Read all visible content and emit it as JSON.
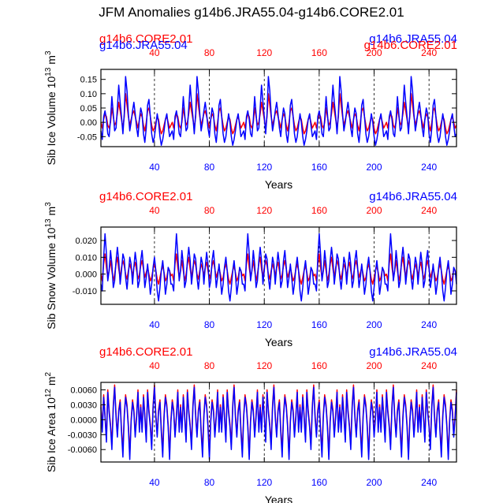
{
  "title": "JFM Anomalies g14b6.JRA55.04-g14b6.CORE2.01",
  "colors": {
    "core": "#ff0000",
    "jra": "#0000ff",
    "axis": "#000000"
  },
  "chart_data": [
    {
      "type": "line",
      "id": "ice-volume",
      "ylabel": "Sib Ice Volume",
      "ylabel_unit": "10",
      "ylabel_unit_exp": "13",
      "ylabel_unit_tail": " m",
      "ylabel_unit_tail_exp": "3",
      "xlabel": "Years",
      "xlim": [
        1,
        260
      ],
      "ylim": [
        -0.085,
        0.185
      ],
      "yticks": [
        -0.05,
        0.0,
        0.05,
        0.1,
        0.15
      ],
      "ytick_labels": [
        "-0.05",
        "0.00",
        "0.05",
        "0.10",
        "0.15"
      ],
      "bottom_xticks": [
        40,
        80,
        120,
        160,
        200,
        240
      ],
      "bottom_xtick_labels": [
        "40",
        "80",
        "120",
        "160",
        "200",
        "240"
      ],
      "top_xticks": [
        40,
        80,
        120,
        160,
        200,
        240
      ],
      "top_xtick_labels": [
        "40",
        "80",
        "120",
        "160",
        "200",
        "240"
      ],
      "vlines": [
        40,
        80,
        120,
        160,
        200,
        240
      ],
      "legend_left": [
        "g14b6.CORE2.01",
        "g14b6.JRA55.04"
      ],
      "legend_right": [
        "g14b6.JRA55.04",
        "g14b6.CORE2.01"
      ],
      "cycle_length": 52,
      "series": [
        {
          "name": "g14b6.CORE2.01",
          "color": "#ff0000",
          "cycle_values": [
            0.0,
            -0.02,
            0.01,
            0.03,
            0.02,
            -0.01,
            -0.02,
            0.0,
            0.05,
            0.02,
            -0.01,
            0.0,
            0.03,
            0.07,
            0.04,
            0.01,
            -0.02,
            0.02,
            0.1,
            0.06,
            0.02,
            -0.01,
            0.01,
            0.03,
            0.04,
            0.02,
            0.0,
            -0.02,
            0.01,
            0.03,
            0.02,
            -0.01,
            -0.03,
            0.0,
            0.04,
            0.05,
            0.02,
            -0.01,
            -0.03,
            -0.02,
            0.0,
            0.02,
            0.01,
            -0.02,
            -0.04,
            -0.03,
            -0.01,
            0.01,
            0.02,
            0.0,
            -0.02,
            -0.01
          ]
        },
        {
          "name": "g14b6.JRA55.04",
          "color": "#0000ff",
          "cycle_values": [
            -0.03,
            -0.06,
            0.02,
            0.04,
            0.01,
            -0.04,
            -0.05,
            0.01,
            0.09,
            0.03,
            -0.03,
            -0.02,
            0.05,
            0.13,
            0.07,
            0.02,
            -0.04,
            0.03,
            0.16,
            0.11,
            0.03,
            -0.03,
            0.0,
            0.04,
            0.07,
            0.03,
            -0.02,
            -0.05,
            0.01,
            0.05,
            0.03,
            -0.04,
            -0.07,
            -0.02,
            0.06,
            0.08,
            0.02,
            -0.04,
            -0.07,
            -0.05,
            -0.01,
            0.03,
            0.0,
            -0.05,
            -0.08,
            -0.06,
            -0.03,
            0.01,
            0.03,
            -0.01,
            -0.05,
            -0.04
          ]
        }
      ]
    },
    {
      "type": "line",
      "id": "snow-volume",
      "ylabel": "Sib Snow Volume",
      "ylabel_unit": "10",
      "ylabel_unit_exp": "13",
      "ylabel_unit_tail": " m",
      "ylabel_unit_tail_exp": "3",
      "xlabel": "Years",
      "xlim": [
        1,
        260
      ],
      "ylim": [
        -0.018,
        0.028
      ],
      "yticks": [
        -0.01,
        0.0,
        0.01,
        0.02
      ],
      "ytick_labels": [
        "-0.010",
        "0.000",
        "0.010",
        "0.020"
      ],
      "bottom_xticks": [
        40,
        80,
        120,
        160,
        200,
        240
      ],
      "bottom_xtick_labels": [
        "40",
        "80",
        "120",
        "160",
        "200",
        "240"
      ],
      "top_xticks": [
        40,
        80,
        120,
        160,
        200,
        240
      ],
      "top_xtick_labels": [
        "40",
        "80",
        "120",
        "160",
        "200",
        "240"
      ],
      "vlines": [
        40,
        80,
        120,
        160,
        200,
        240
      ],
      "legend_left": [
        "g14b6.CORE2.01"
      ],
      "legend_right": [
        "g14b6.JRA55.04"
      ],
      "cycle_length": 52,
      "series": [
        {
          "name": "g14b6.CORE2.01",
          "color": "#ff0000",
          "cycle_values": [
            0.0,
            -0.004,
            0.006,
            0.012,
            0.004,
            -0.002,
            0.002,
            0.008,
            0.002,
            -0.004,
            0.0,
            0.006,
            0.01,
            0.003,
            -0.002,
            0.004,
            0.008,
            0.005,
            0.0,
            -0.003,
            0.002,
            0.006,
            0.003,
            -0.001,
            0.004,
            0.007,
            0.002,
            -0.003,
            0.0,
            0.005,
            0.008,
            0.003,
            -0.002,
            0.001,
            0.004,
            0.0,
            -0.004,
            -0.002,
            0.003,
            0.006,
            0.002,
            -0.003,
            -0.006,
            -0.002,
            0.002,
            0.005,
            0.001,
            -0.004,
            -0.002,
            0.003,
            0.002,
            -0.001
          ]
        },
        {
          "name": "g14b6.JRA55.04",
          "color": "#0000ff",
          "cycle_values": [
            -0.006,
            -0.01,
            0.01,
            0.024,
            0.012,
            -0.004,
            0.002,
            0.014,
            0.006,
            -0.008,
            -0.004,
            0.008,
            0.016,
            0.008,
            -0.006,
            0.002,
            0.012,
            0.009,
            -0.002,
            -0.009,
            0.0,
            0.01,
            0.006,
            -0.006,
            0.004,
            0.013,
            0.006,
            -0.008,
            -0.004,
            0.008,
            0.014,
            0.004,
            -0.008,
            -0.002,
            0.006,
            -0.002,
            -0.012,
            -0.006,
            0.004,
            0.01,
            0.002,
            -0.01,
            -0.016,
            -0.008,
            0.002,
            0.008,
            0.0,
            -0.012,
            -0.006,
            0.004,
            0.002,
            -0.006
          ]
        }
      ]
    },
    {
      "type": "line",
      "id": "ice-area",
      "ylabel": "Sib Ice Area",
      "ylabel_unit": "10",
      "ylabel_unit_exp": "12",
      "ylabel_unit_tail": " m",
      "ylabel_unit_tail_exp": "2",
      "xlabel": "Years",
      "xlim": [
        1,
        260
      ],
      "ylim": [
        -0.0085,
        0.0075
      ],
      "yticks": [
        -0.006,
        -0.003,
        0.0,
        0.003,
        0.006
      ],
      "ytick_labels": [
        "-0.0060",
        "-0.0030",
        "0.0000",
        "0.0030",
        "0.0060"
      ],
      "bottom_xticks": [
        40,
        80,
        120,
        160,
        200,
        240
      ],
      "bottom_xtick_labels": [
        "40",
        "80",
        "120",
        "160",
        "200",
        "240"
      ],
      "top_xticks": [
        40,
        80,
        120,
        160,
        200,
        240
      ],
      "top_xtick_labels": [
        "40",
        "80",
        "120",
        "160",
        "200",
        "240"
      ],
      "vlines": [
        40,
        80,
        120,
        160,
        200,
        240
      ],
      "legend_left": [
        "g14b6.CORE2.01"
      ],
      "legend_right": [
        "g14b6.JRA55.04"
      ],
      "cycle_length": 29,
      "series": [
        {
          "name": "g14b6.CORE2.01",
          "color": "#ff0000",
          "cycle_values": [
            0.003,
            -0.002,
            0.005,
            0.001,
            -0.004,
            0.006,
            0.002,
            -0.001,
            -0.005,
            0.003,
            0.007,
            0.001,
            -0.003,
            0.002,
            0.004,
            -0.002,
            -0.006,
            0.001,
            0.005,
            0.003,
            -0.001,
            -0.007,
            0.0,
            0.004,
            0.002,
            -0.003,
            0.001,
            0.006,
            -0.002
          ]
        },
        {
          "name": "g14b6.JRA55.04",
          "color": "#0000ff",
          "cycle_values": [
            0.0025,
            -0.0025,
            0.0045,
            0.0005,
            -0.0045,
            0.0055,
            0.0015,
            -0.0015,
            -0.006,
            0.0025,
            0.0065,
            0.0005,
            -0.0035,
            0.0015,
            0.0035,
            -0.0025,
            -0.0075,
            0.0005,
            0.0045,
            0.0025,
            -0.0015,
            -0.008,
            -0.0005,
            0.0035,
            0.0015,
            -0.0035,
            0.0005,
            0.0055,
            -0.0025
          ]
        }
      ]
    }
  ]
}
